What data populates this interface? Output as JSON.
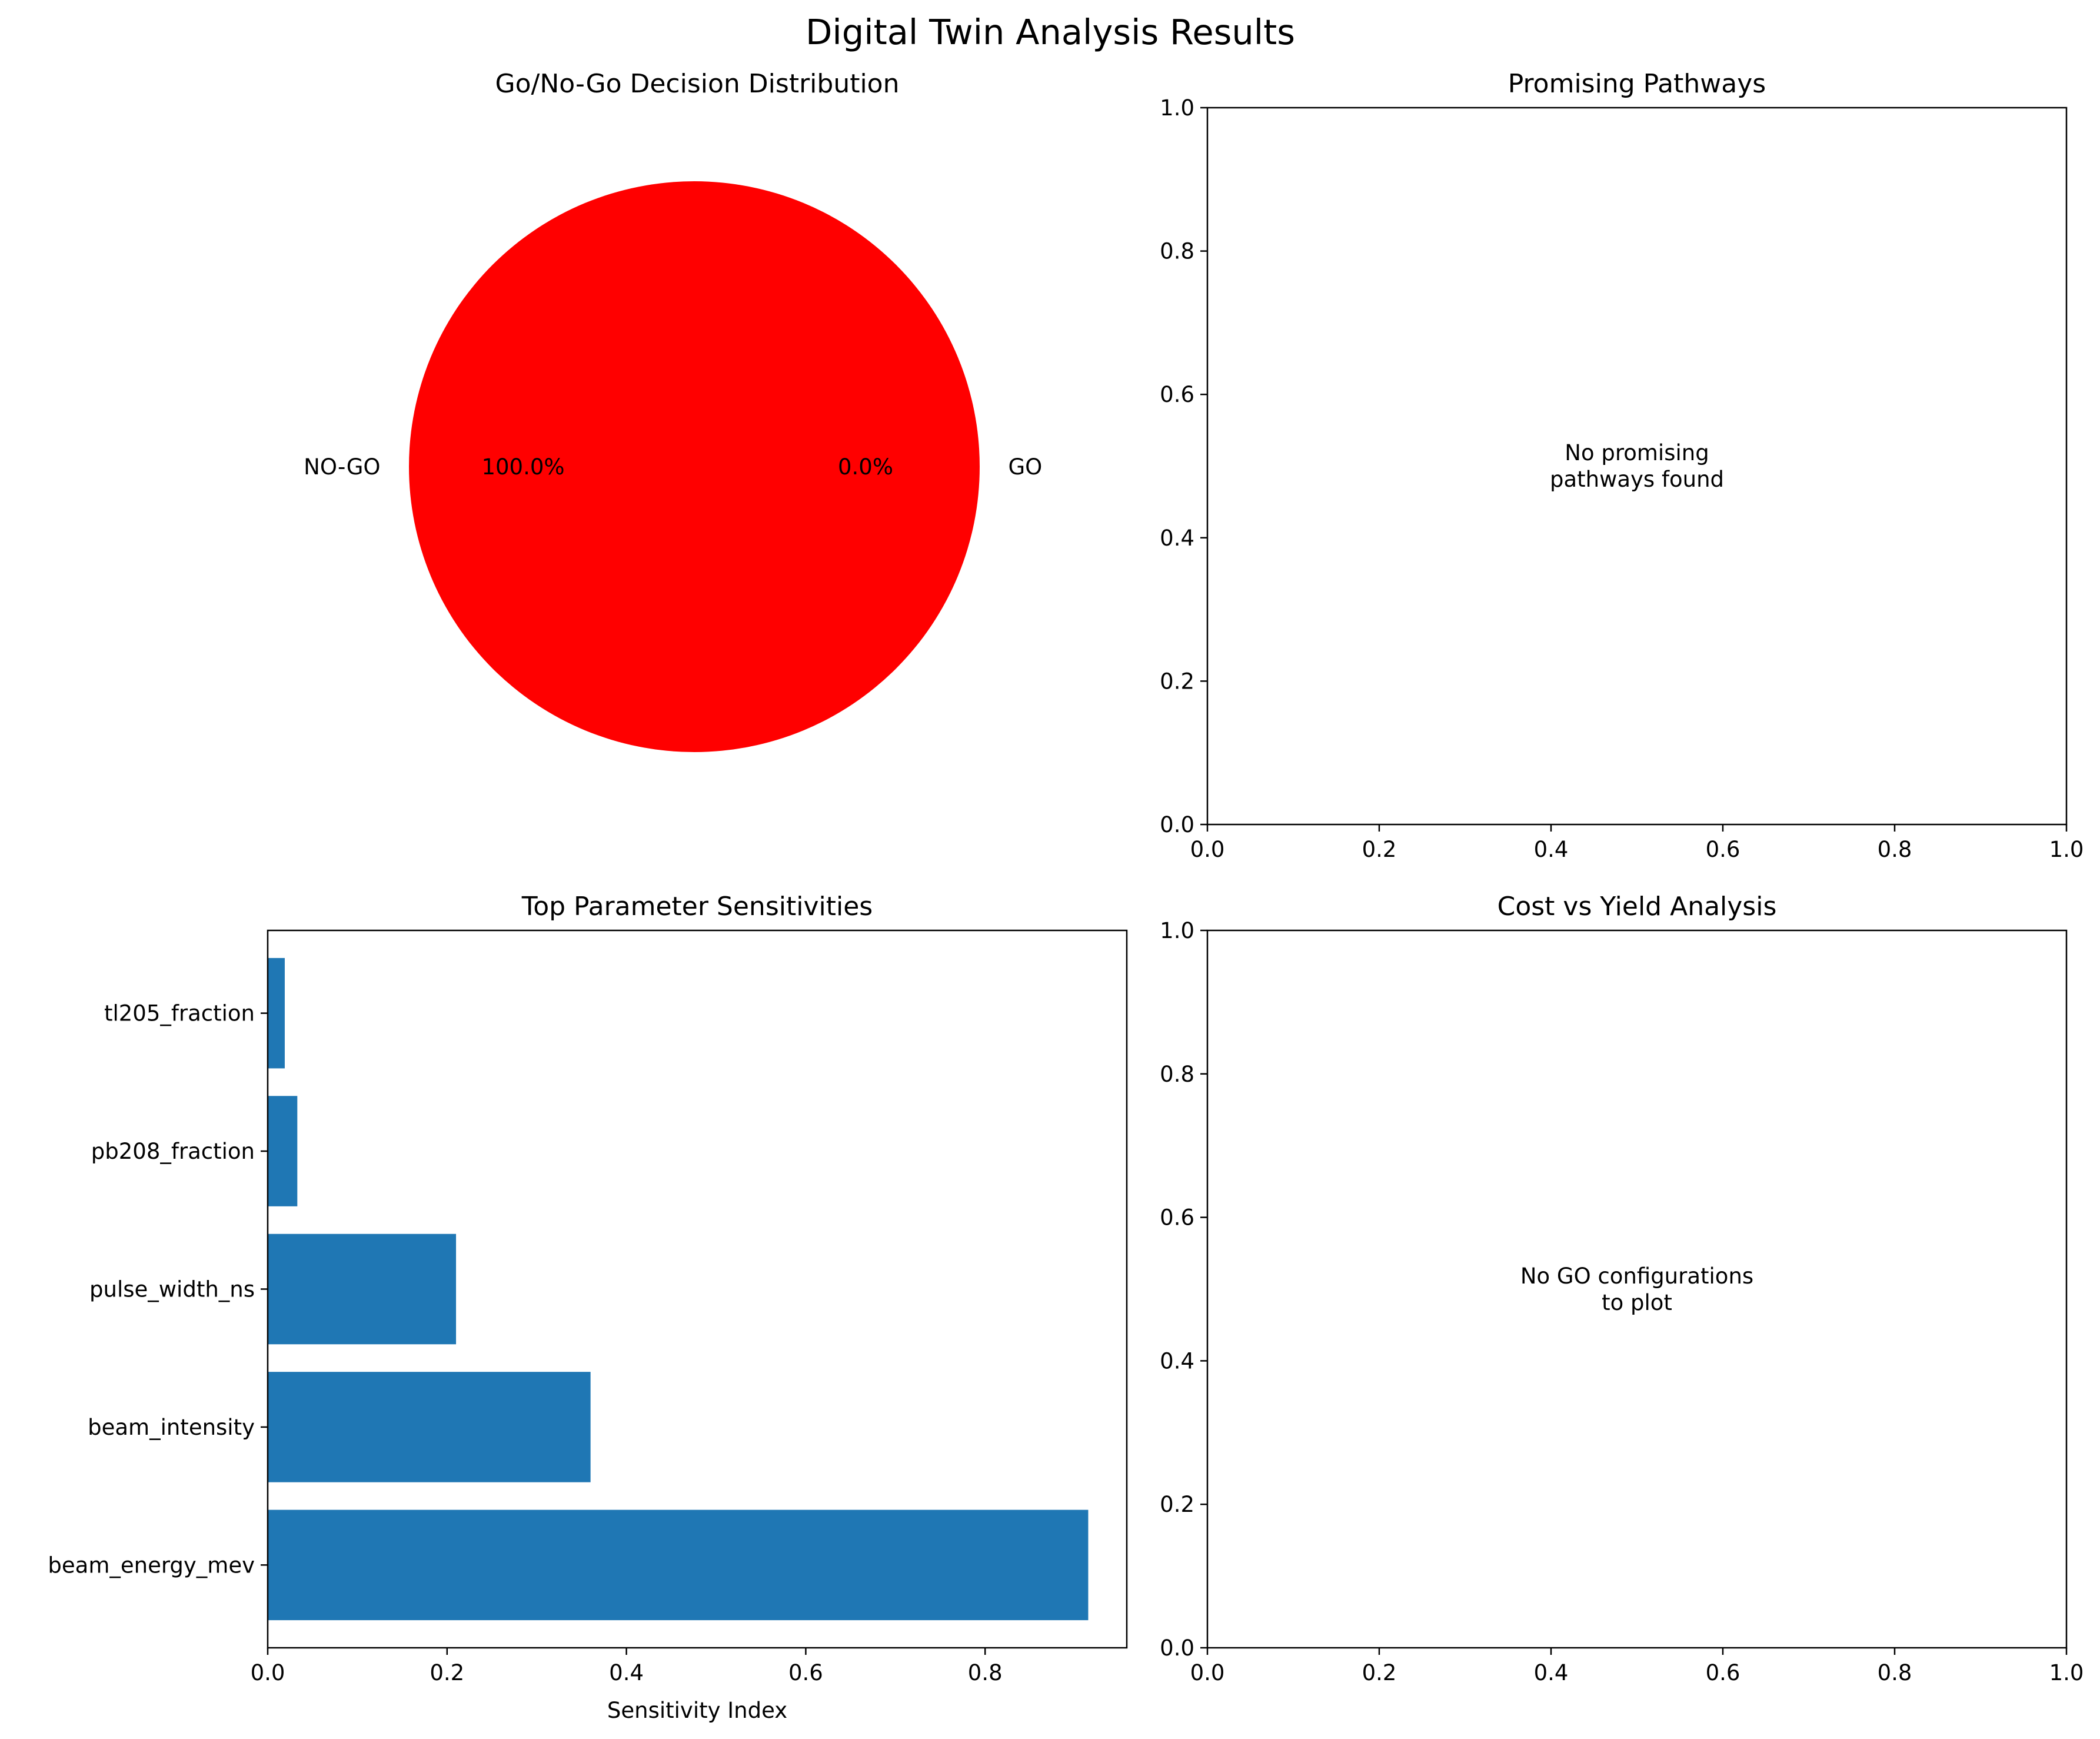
{
  "figure": {
    "title": "Digital Twin Analysis Results"
  },
  "chart_data": [
    {
      "type": "pie",
      "title": "Go/No-Go Decision Distribution",
      "slices": [
        {
          "label": "NO-GO",
          "value": 100.0,
          "pct_label": "100.0%",
          "color": "#ff0000"
        },
        {
          "label": "GO",
          "value": 0.0,
          "pct_label": "0.0%",
          "color": "#008000"
        }
      ]
    },
    {
      "type": "scatter",
      "title": "Promising Pathways",
      "xlim": [
        0,
        1
      ],
      "ylim": [
        0,
        1
      ],
      "xticks": [
        "0.0",
        "0.2",
        "0.4",
        "0.6",
        "0.8",
        "1.0"
      ],
      "yticks": [
        "0.0",
        "0.2",
        "0.4",
        "0.6",
        "0.8",
        "1.0"
      ],
      "series": [],
      "message_lines": [
        "No promising",
        "pathways found"
      ]
    },
    {
      "type": "bar",
      "orientation": "horizontal",
      "title": "Top Parameter Sensitivities",
      "xlabel": "Sensitivity Index",
      "ylabel": "",
      "xlim": [
        0,
        0.958
      ],
      "xticks": [
        "0.0",
        "0.2",
        "0.4",
        "0.6",
        "0.8"
      ],
      "categories": [
        "beam_energy_mev",
        "beam_intensity",
        "pulse_width_ns",
        "pb208_fraction",
        "tl205_fraction"
      ],
      "values": [
        0.915,
        0.36,
        0.21,
        0.033,
        0.019
      ],
      "bar_color": "#1f77b4"
    },
    {
      "type": "scatter",
      "title": "Cost vs Yield Analysis",
      "xlim": [
        0,
        1
      ],
      "ylim": [
        0,
        1
      ],
      "xticks": [
        "0.0",
        "0.2",
        "0.4",
        "0.6",
        "0.8",
        "1.0"
      ],
      "yticks": [
        "0.0",
        "0.2",
        "0.4",
        "0.6",
        "0.8",
        "1.0"
      ],
      "series": [],
      "message_lines": [
        "No GO configurations",
        "to plot"
      ]
    }
  ]
}
